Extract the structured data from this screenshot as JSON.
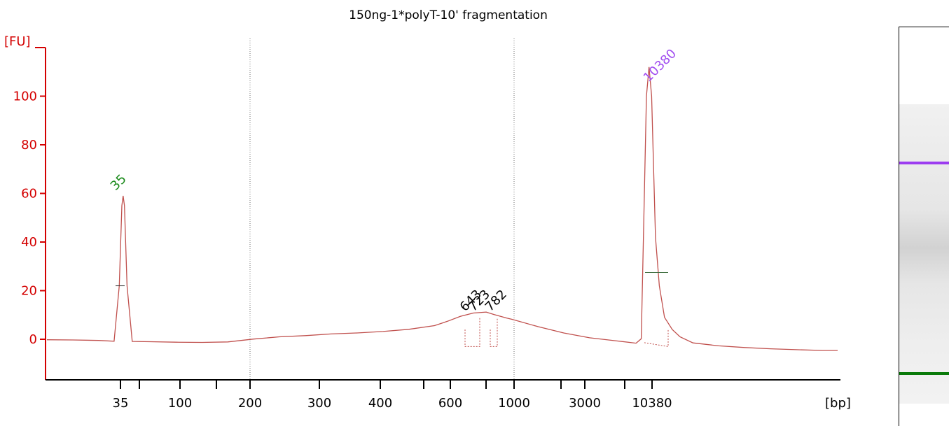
{
  "chart_data": {
    "type": "line",
    "title": "150ng-1*polyT-10' fragmentation",
    "ylabel": "[FU]",
    "xlabel": "[bp]",
    "ylim": [
      -17,
      118
    ],
    "yticks": [
      0,
      20,
      40,
      60,
      80,
      100
    ],
    "xticks": [
      "35",
      "100",
      "200",
      "300",
      "400",
      "600",
      "1000",
      "3000",
      "10380"
    ],
    "x_minor_ticks": 4,
    "gridlines_at": [
      "200",
      "1000"
    ],
    "grid": false,
    "axis_color": "#d40000",
    "trace_color": "#c0504d",
    "series": [
      {
        "points": [
          [
            0.0,
            -0.2
          ],
          [
            1.0,
            -0.3
          ],
          [
            2.0,
            -0.5
          ],
          [
            2.6,
            -0.8
          ],
          [
            2.8,
            22
          ],
          [
            2.9,
            55
          ],
          [
            2.95,
            59
          ],
          [
            3.0,
            55
          ],
          [
            3.1,
            22
          ],
          [
            3.3,
            -0.9
          ],
          [
            4.0,
            -1.0
          ],
          [
            5.0,
            -1.2
          ],
          [
            6.0,
            -1.3
          ],
          [
            7.0,
            -1.1
          ],
          [
            8.0,
            0.1
          ],
          [
            9.0,
            1.0
          ],
          [
            10.0,
            1.5
          ],
          [
            11.0,
            2.2
          ],
          [
            12.0,
            2.6
          ],
          [
            13.0,
            3.2
          ],
          [
            14.0,
            4.1
          ],
          [
            15.0,
            5.6
          ],
          [
            15.5,
            7.4
          ],
          [
            16.0,
            9.4
          ],
          [
            16.5,
            10.8
          ],
          [
            17.0,
            11.2
          ],
          [
            17.3,
            10.2
          ],
          [
            17.8,
            8.7
          ],
          [
            18.0,
            8.2
          ],
          [
            19.0,
            5.2
          ],
          [
            20.0,
            2.6
          ],
          [
            21.0,
            0.6
          ],
          [
            22.0,
            -0.6
          ],
          [
            22.8,
            -1.6
          ],
          [
            23.0,
            0.2
          ],
          [
            23.1,
            50
          ],
          [
            23.2,
            100
          ],
          [
            23.3,
            112
          ],
          [
            23.4,
            100
          ],
          [
            23.55,
            42
          ],
          [
            23.7,
            22
          ],
          [
            23.9,
            9
          ],
          [
            24.2,
            4
          ],
          [
            24.5,
            1
          ],
          [
            25.0,
            -1.5
          ],
          [
            26.0,
            -2.7
          ],
          [
            27.0,
            -3.4
          ],
          [
            28.0,
            -3.9
          ],
          [
            29.0,
            -4.3
          ],
          [
            30.0,
            -4.6
          ],
          [
            30.6,
            -4.6
          ]
        ]
      }
    ],
    "peaks": [
      {
        "label": "35",
        "color": "#1a8a1a"
      },
      {
        "label": "10380",
        "color": "#a24ff0"
      },
      {
        "label": "643",
        "color": "#000000"
      },
      {
        "label": "723",
        "color": "#000000"
      },
      {
        "label": "782",
        "color": "#000000"
      }
    ]
  },
  "gel": {
    "upper_marker_color": "#9c3cf0",
    "lower_marker_color": "#0a7a0a"
  }
}
